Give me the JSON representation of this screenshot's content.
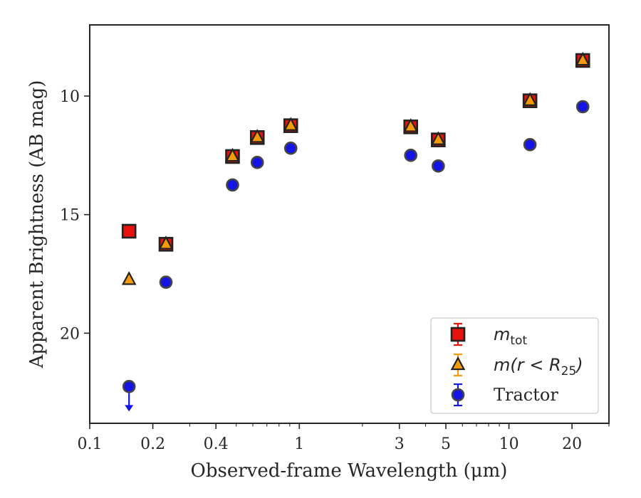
{
  "chart_data": {
    "type": "scatter",
    "xlabel": "Observed-frame Wavelength (μm)",
    "ylabel": "Apparent Brightness (AB mag)",
    "x_scale": "log",
    "xlim": [
      0.1,
      30
    ],
    "ylim": [
      23.8,
      7.0
    ],
    "y_inverted": true,
    "x_ticks": [
      0.1,
      0.2,
      0.4,
      1,
      3,
      5,
      10,
      20
    ],
    "x_tick_labels": [
      "0.1",
      "0.2",
      "0.4",
      "1",
      "3",
      "5",
      "10",
      "20"
    ],
    "y_ticks": [
      10,
      15,
      20
    ],
    "y_tick_labels": [
      "10",
      "15",
      "20"
    ],
    "grid": false,
    "legend_position": "bottom-right",
    "series": [
      {
        "name_main": "m",
        "name_sub": "tot",
        "marker": "square",
        "color": "#e8120c",
        "points": [
          {
            "x": 0.154,
            "y": 15.7
          },
          {
            "x": 0.231,
            "y": 16.25
          },
          {
            "x": 0.48,
            "y": 12.55
          },
          {
            "x": 0.63,
            "y": 11.75
          },
          {
            "x": 0.91,
            "y": 11.25
          },
          {
            "x": 3.4,
            "y": 11.3
          },
          {
            "x": 4.6,
            "y": 11.85
          },
          {
            "x": 12.6,
            "y": 10.2
          },
          {
            "x": 22.5,
            "y": 8.5
          }
        ]
      },
      {
        "name_main": "m(r < R",
        "name_sub": "25",
        "name_end": ")",
        "marker": "triangle",
        "color": "#f59a0a",
        "points": [
          {
            "x": 0.154,
            "y": 17.75
          },
          {
            "x": 0.231,
            "y": 16.25
          },
          {
            "x": 0.48,
            "y": 12.55
          },
          {
            "x": 0.63,
            "y": 11.75
          },
          {
            "x": 0.91,
            "y": 11.25
          },
          {
            "x": 3.4,
            "y": 11.3
          },
          {
            "x": 4.6,
            "y": 11.85
          },
          {
            "x": 12.6,
            "y": 10.2
          },
          {
            "x": 22.5,
            "y": 8.5
          }
        ]
      },
      {
        "name": "Tractor",
        "marker": "circle",
        "color": "#1414e6",
        "points": [
          {
            "x": 0.154,
            "y": 22.25,
            "upper_limit": true
          },
          {
            "x": 0.231,
            "y": 17.85
          },
          {
            "x": 0.48,
            "y": 13.75
          },
          {
            "x": 0.63,
            "y": 12.8
          },
          {
            "x": 0.91,
            "y": 12.2
          },
          {
            "x": 3.4,
            "y": 12.5
          },
          {
            "x": 4.6,
            "y": 12.95
          },
          {
            "x": 12.6,
            "y": 12.05
          },
          {
            "x": 22.5,
            "y": 10.45
          }
        ]
      }
    ]
  }
}
